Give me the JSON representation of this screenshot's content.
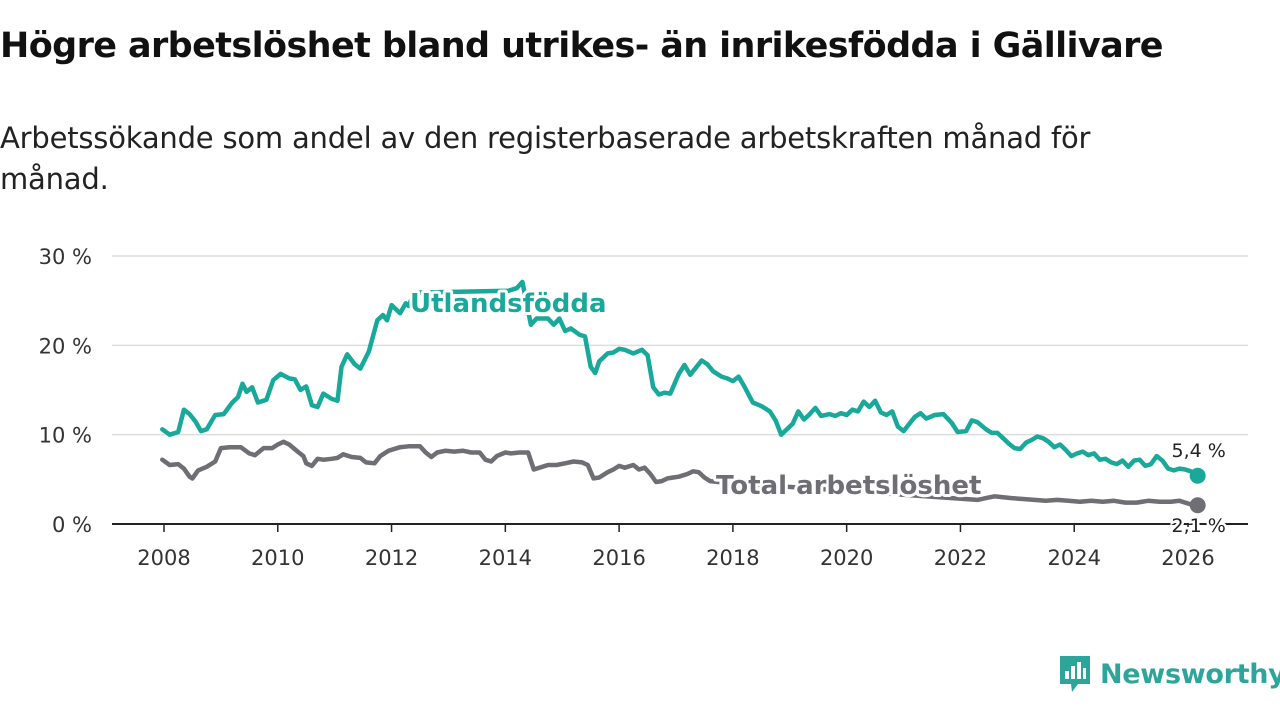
{
  "title": "Högre arbetslöshet bland utrikes- än inrikesfödda i Gällivare",
  "subtitle": "Arbetssökande som andel av den registerbaserade arbetskraften månad för månad.",
  "brand": {
    "name": "Newsworthy",
    "icon": "newsworthy-logo-icon"
  },
  "colors": {
    "foreign": "#18a99a",
    "total": "#6e6e74",
    "grid": "#dddddd",
    "axis": "#222222"
  },
  "chart_data": {
    "type": "line",
    "title": "Högre arbetslöshet bland utrikes- än inrikesfödda i Gällivare",
    "xlabel": "",
    "ylabel": "",
    "xlim": [
      2008,
      2026.4
    ],
    "ylim": [
      0,
      30
    ],
    "x_ticks": [
      2008,
      2010,
      2012,
      2014,
      2016,
      2018,
      2020,
      2022,
      2024,
      2026
    ],
    "x_tick_labels": [
      "2008",
      "2010",
      "2012",
      "2014",
      "2016",
      "2018",
      "2020",
      "2022",
      "2024",
      "2026"
    ],
    "y_ticks": [
      0,
      10,
      20,
      30
    ],
    "y_tick_labels": [
      "0 %",
      "10 %",
      "20 %",
      "30 %"
    ],
    "grid": "horizontal",
    "series": [
      {
        "name": "Utlandsfödda",
        "end_label": "5,4 %",
        "points": [
          [
            2007.97,
            10.6
          ],
          [
            2008.1,
            10.0
          ],
          [
            2008.25,
            10.3
          ],
          [
            2008.35,
            12.8
          ],
          [
            2008.45,
            12.3
          ],
          [
            2008.55,
            11.5
          ],
          [
            2008.65,
            10.4
          ],
          [
            2008.75,
            10.6
          ],
          [
            2008.9,
            12.2
          ],
          [
            2009.05,
            12.3
          ],
          [
            2009.2,
            13.6
          ],
          [
            2009.3,
            14.2
          ],
          [
            2009.38,
            15.7
          ],
          [
            2009.45,
            14.8
          ],
          [
            2009.55,
            15.3
          ],
          [
            2009.65,
            13.6
          ],
          [
            2009.8,
            13.9
          ],
          [
            2009.92,
            16.1
          ],
          [
            2010.05,
            16.8
          ],
          [
            2010.2,
            16.3
          ],
          [
            2010.3,
            16.2
          ],
          [
            2010.4,
            15.0
          ],
          [
            2010.5,
            15.4
          ],
          [
            2010.6,
            13.3
          ],
          [
            2010.7,
            13.1
          ],
          [
            2010.8,
            14.6
          ],
          [
            2010.95,
            14.0
          ],
          [
            2011.05,
            13.8
          ],
          [
            2011.12,
            17.6
          ],
          [
            2011.22,
            19.0
          ],
          [
            2011.35,
            17.9
          ],
          [
            2011.45,
            17.4
          ],
          [
            2011.6,
            19.3
          ],
          [
            2011.75,
            22.8
          ],
          [
            2011.85,
            23.4
          ],
          [
            2011.92,
            22.8
          ],
          [
            2012.0,
            24.5
          ],
          [
            2012.15,
            23.6
          ],
          [
            2012.25,
            24.7
          ],
          [
            2012.3,
            24.4
          ],
          [
            2012.4,
            25.9
          ],
          [
            2014.05,
            26.1
          ],
          [
            2014.2,
            26.4
          ],
          [
            2014.3,
            27.1
          ],
          [
            2014.45,
            22.3
          ],
          [
            2014.55,
            23.0
          ],
          [
            2014.75,
            23.0
          ],
          [
            2014.85,
            22.3
          ],
          [
            2014.95,
            23.0
          ],
          [
            2015.05,
            21.6
          ],
          [
            2015.15,
            21.9
          ],
          [
            2015.3,
            21.2
          ],
          [
            2015.4,
            21.0
          ],
          [
            2015.5,
            17.6
          ],
          [
            2015.58,
            16.9
          ],
          [
            2015.65,
            18.2
          ],
          [
            2015.8,
            19.1
          ],
          [
            2015.9,
            19.2
          ],
          [
            2016.0,
            19.6
          ],
          [
            2016.1,
            19.5
          ],
          [
            2016.25,
            19.1
          ],
          [
            2016.4,
            19.5
          ],
          [
            2016.5,
            18.9
          ],
          [
            2016.6,
            15.3
          ],
          [
            2016.7,
            14.5
          ],
          [
            2016.8,
            14.7
          ],
          [
            2016.9,
            14.6
          ],
          [
            2017.05,
            16.8
          ],
          [
            2017.15,
            17.8
          ],
          [
            2017.25,
            16.7
          ],
          [
            2017.35,
            17.5
          ],
          [
            2017.45,
            18.3
          ],
          [
            2017.55,
            17.9
          ],
          [
            2017.65,
            17.1
          ],
          [
            2017.8,
            16.5
          ],
          [
            2017.9,
            16.3
          ],
          [
            2018.0,
            16.0
          ],
          [
            2018.1,
            16.5
          ],
          [
            2018.2,
            15.4
          ],
          [
            2018.35,
            13.6
          ],
          [
            2018.5,
            13.2
          ],
          [
            2018.65,
            12.6
          ],
          [
            2018.75,
            11.6
          ],
          [
            2018.85,
            10.0
          ],
          [
            2018.95,
            10.6
          ],
          [
            2019.05,
            11.2
          ],
          [
            2019.15,
            12.6
          ],
          [
            2019.25,
            11.7
          ],
          [
            2019.35,
            12.3
          ],
          [
            2019.45,
            13.0
          ],
          [
            2019.55,
            12.1
          ],
          [
            2019.7,
            12.3
          ],
          [
            2019.8,
            12.1
          ],
          [
            2019.9,
            12.4
          ],
          [
            2020.0,
            12.2
          ],
          [
            2020.1,
            12.8
          ],
          [
            2020.2,
            12.6
          ],
          [
            2020.3,
            13.7
          ],
          [
            2020.4,
            13.1
          ],
          [
            2020.5,
            13.8
          ],
          [
            2020.6,
            12.5
          ],
          [
            2020.7,
            12.2
          ],
          [
            2020.8,
            12.6
          ],
          [
            2020.9,
            10.9
          ],
          [
            2021.0,
            10.4
          ],
          [
            2021.1,
            11.2
          ],
          [
            2021.2,
            12.0
          ],
          [
            2021.3,
            12.4
          ],
          [
            2021.4,
            11.8
          ],
          [
            2021.55,
            12.2
          ],
          [
            2021.7,
            12.3
          ],
          [
            2021.85,
            11.3
          ],
          [
            2021.95,
            10.3
          ],
          [
            2022.1,
            10.4
          ],
          [
            2022.2,
            11.6
          ],
          [
            2022.3,
            11.4
          ],
          [
            2022.45,
            10.6
          ],
          [
            2022.55,
            10.2
          ],
          [
            2022.65,
            10.2
          ],
          [
            2022.75,
            9.6
          ],
          [
            2022.85,
            9.0
          ],
          [
            2022.95,
            8.5
          ],
          [
            2023.05,
            8.4
          ],
          [
            2023.15,
            9.1
          ],
          [
            2023.25,
            9.4
          ],
          [
            2023.35,
            9.8
          ],
          [
            2023.45,
            9.6
          ],
          [
            2023.55,
            9.2
          ],
          [
            2023.65,
            8.6
          ],
          [
            2023.75,
            8.9
          ],
          [
            2023.85,
            8.3
          ],
          [
            2023.95,
            7.6
          ],
          [
            2024.05,
            7.9
          ],
          [
            2024.15,
            8.1
          ],
          [
            2024.25,
            7.7
          ],
          [
            2024.35,
            7.9
          ],
          [
            2024.45,
            7.2
          ],
          [
            2024.55,
            7.3
          ],
          [
            2024.65,
            6.9
          ],
          [
            2024.75,
            6.7
          ],
          [
            2024.85,
            7.1
          ],
          [
            2024.95,
            6.4
          ],
          [
            2025.05,
            7.1
          ],
          [
            2025.15,
            7.2
          ],
          [
            2025.25,
            6.5
          ],
          [
            2025.35,
            6.7
          ],
          [
            2025.45,
            7.6
          ],
          [
            2025.55,
            7.1
          ],
          [
            2025.65,
            6.2
          ],
          [
            2025.75,
            6.0
          ],
          [
            2025.85,
            6.2
          ],
          [
            2025.95,
            6.1
          ],
          [
            2026.05,
            5.9
          ],
          [
            2026.1,
            5.5
          ],
          [
            2026.17,
            5.4
          ]
        ]
      },
      {
        "name": "Total arbetslöshet",
        "end_label": "2,1 %",
        "points": [
          [
            2007.97,
            7.2
          ],
          [
            2008.1,
            6.6
          ],
          [
            2008.25,
            6.7
          ],
          [
            2008.35,
            6.2
          ],
          [
            2008.45,
            5.3
          ],
          [
            2008.5,
            5.1
          ],
          [
            2008.6,
            6.0
          ],
          [
            2008.75,
            6.4
          ],
          [
            2008.9,
            7.0
          ],
          [
            2009.0,
            8.5
          ],
          [
            2009.15,
            8.6
          ],
          [
            2009.35,
            8.6
          ],
          [
            2009.5,
            7.9
          ],
          [
            2009.6,
            7.7
          ],
          [
            2009.75,
            8.5
          ],
          [
            2009.9,
            8.5
          ],
          [
            2010.0,
            8.9
          ],
          [
            2010.1,
            9.2
          ],
          [
            2010.2,
            8.9
          ],
          [
            2010.35,
            8.1
          ],
          [
            2010.45,
            7.6
          ],
          [
            2010.5,
            6.8
          ],
          [
            2010.6,
            6.5
          ],
          [
            2010.7,
            7.3
          ],
          [
            2010.8,
            7.2
          ],
          [
            2010.95,
            7.3
          ],
          [
            2011.05,
            7.4
          ],
          [
            2011.15,
            7.8
          ],
          [
            2011.3,
            7.5
          ],
          [
            2011.45,
            7.4
          ],
          [
            2011.55,
            6.9
          ],
          [
            2011.7,
            6.8
          ],
          [
            2011.8,
            7.6
          ],
          [
            2011.95,
            8.2
          ],
          [
            2012.15,
            8.6
          ],
          [
            2012.3,
            8.7
          ],
          [
            2012.5,
            8.7
          ],
          [
            2012.6,
            8.0
          ],
          [
            2012.7,
            7.5
          ],
          [
            2012.8,
            8.0
          ],
          [
            2012.95,
            8.2
          ],
          [
            2013.1,
            8.1
          ],
          [
            2013.25,
            8.2
          ],
          [
            2013.4,
            8.0
          ],
          [
            2013.55,
            8.0
          ],
          [
            2013.65,
            7.2
          ],
          [
            2013.75,
            7.0
          ],
          [
            2013.85,
            7.6
          ],
          [
            2014.0,
            8.0
          ],
          [
            2014.1,
            7.9
          ],
          [
            2014.25,
            8.0
          ],
          [
            2014.4,
            8.0
          ],
          [
            2014.5,
            6.1
          ],
          [
            2014.65,
            6.4
          ],
          [
            2014.75,
            6.6
          ],
          [
            2014.9,
            6.6
          ],
          [
            2015.05,
            6.8
          ],
          [
            2015.2,
            7.0
          ],
          [
            2015.35,
            6.9
          ],
          [
            2015.45,
            6.6
          ],
          [
            2015.55,
            5.1
          ],
          [
            2015.65,
            5.2
          ],
          [
            2015.8,
            5.8
          ],
          [
            2015.9,
            6.1
          ],
          [
            2016.0,
            6.5
          ],
          [
            2016.1,
            6.3
          ],
          [
            2016.25,
            6.6
          ],
          [
            2016.35,
            6.1
          ],
          [
            2016.45,
            6.3
          ],
          [
            2016.55,
            5.6
          ],
          [
            2016.65,
            4.7
          ],
          [
            2016.75,
            4.8
          ],
          [
            2016.85,
            5.1
          ],
          [
            2016.95,
            5.2
          ],
          [
            2017.05,
            5.3
          ],
          [
            2017.2,
            5.6
          ],
          [
            2017.3,
            5.9
          ],
          [
            2017.4,
            5.8
          ],
          [
            2017.5,
            5.2
          ],
          [
            2017.6,
            4.8
          ],
          [
            2017.75,
            4.7
          ],
          [
            2022.3,
            2.7
          ],
          [
            2022.45,
            2.9
          ],
          [
            2022.6,
            3.1
          ],
          [
            2022.75,
            3.0
          ],
          [
            2022.9,
            2.9
          ],
          [
            2023.1,
            2.8
          ],
          [
            2023.3,
            2.7
          ],
          [
            2023.5,
            2.6
          ],
          [
            2023.7,
            2.7
          ],
          [
            2023.9,
            2.6
          ],
          [
            2024.1,
            2.5
          ],
          [
            2024.3,
            2.6
          ],
          [
            2024.5,
            2.5
          ],
          [
            2024.7,
            2.6
          ],
          [
            2024.9,
            2.4
          ],
          [
            2025.1,
            2.4
          ],
          [
            2025.3,
            2.6
          ],
          [
            2025.5,
            2.5
          ],
          [
            2025.7,
            2.5
          ],
          [
            2025.85,
            2.6
          ],
          [
            2026.0,
            2.3
          ],
          [
            2026.1,
            2.1
          ],
          [
            2026.17,
            2.1
          ]
        ]
      }
    ]
  }
}
